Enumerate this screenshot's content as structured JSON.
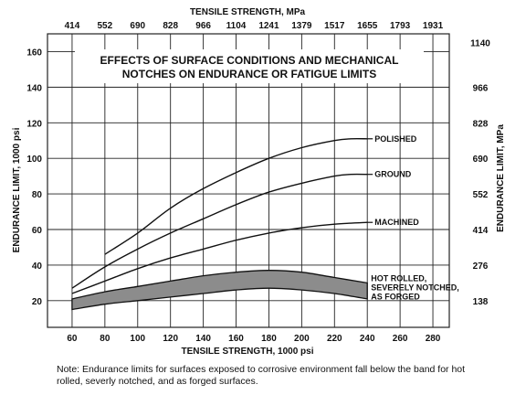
{
  "chart_data": {
    "type": "line",
    "title_lines": [
      "EFFECTS OF SURFACE CONDITIONS AND MECHANICAL",
      "NOTCHES ON ENDURANCE OR FATIGUE LIMITS"
    ],
    "xlabel": "TENSILE STRENGTH, 1000 psi",
    "ylabel": "ENDURANCE LIMIT, 1000 psi",
    "x2label": "TENSILE STRENGTH, MPa",
    "y2label": "ENDURANCE LIMIT, MPa",
    "xlim": [
      45,
      290
    ],
    "ylim": [
      5,
      170
    ],
    "x_ticks": [
      60,
      80,
      100,
      120,
      140,
      160,
      180,
      200,
      220,
      240,
      260,
      280
    ],
    "y_ticks": [
      20,
      40,
      60,
      80,
      100,
      120,
      140,
      160
    ],
    "x2_ticks": [
      {
        "label": "414",
        "at": 60
      },
      {
        "label": "552",
        "at": 80
      },
      {
        "label": "690",
        "at": 100
      },
      {
        "label": "828",
        "at": 120
      },
      {
        "label": "966",
        "at": 140
      },
      {
        "label": "1104",
        "at": 160
      },
      {
        "label": "1241",
        "at": 180
      },
      {
        "label": "1379",
        "at": 200
      },
      {
        "label": "1517",
        "at": 220
      },
      {
        "label": "1655",
        "at": 240
      },
      {
        "label": "1793",
        "at": 260
      },
      {
        "label": "1931",
        "at": 280
      }
    ],
    "y2_ticks": [
      {
        "label": "1140",
        "at": 165
      },
      {
        "label": "966",
        "at": 140
      },
      {
        "label": "828",
        "at": 120
      },
      {
        "label": "690",
        "at": 100
      },
      {
        "label": "552",
        "at": 80
      },
      {
        "label": "414",
        "at": 60
      },
      {
        "label": "276",
        "at": 40
      },
      {
        "label": "138",
        "at": 20
      }
    ],
    "grid": true,
    "series": [
      {
        "name": "POLISHED",
        "x": [
          80,
          100,
          120,
          140,
          160,
          180,
          200,
          220,
          230,
          240
        ],
        "y": [
          46,
          58,
          72,
          83,
          92,
          100,
          106,
          110,
          111,
          111
        ]
      },
      {
        "name": "GROUND",
        "x": [
          60,
          80,
          100,
          120,
          140,
          160,
          180,
          200,
          220,
          230,
          240
        ],
        "y": [
          27,
          39,
          49,
          58,
          66,
          74,
          81,
          86,
          90,
          91,
          91
        ]
      },
      {
        "name": "MACHINED",
        "x": [
          60,
          80,
          100,
          120,
          140,
          160,
          180,
          200,
          220,
          240
        ],
        "y": [
          24,
          31,
          38,
          44,
          49,
          54,
          58,
          61,
          63,
          64
        ]
      }
    ],
    "band": {
      "name_lines": [
        "HOT ROLLED,",
        "SEVERELY NOTCHED,",
        "AS FORGED"
      ],
      "x": [
        60,
        80,
        100,
        120,
        140,
        160,
        180,
        200,
        220,
        240
      ],
      "upper": [
        21,
        25,
        28,
        31,
        34,
        36,
        37,
        36,
        33,
        30
      ],
      "lower": [
        15,
        18,
        20,
        22,
        24,
        26,
        27,
        26,
        24,
        21
      ]
    },
    "colors": {
      "line": "#111111",
      "band": "#8c8c8c",
      "grid": "#222222"
    }
  },
  "note": "Note:  Endurance limits for surfaces exposed to corrosive environment fall below the band for hot rolled, severly notched, and as forged surfaces."
}
